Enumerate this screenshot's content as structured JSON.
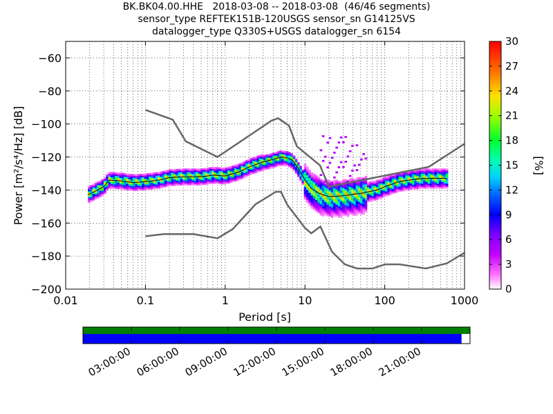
{
  "title_lines": [
    "BK.BK04.00.HHE   2018-03-08 -- 2018-03-08  (46/46 segments)",
    "sensor_type REFTEK151B-120USGS sensor_sn G14125VS",
    "datalogger_type Q330S+USGS datalogger_sn 6154"
  ],
  "chart_data": {
    "type": "heatmap",
    "title": "BK.BK04.00.HHE   2018-03-08 -- 2018-03-08  (46/46 segments)",
    "xlabel": "Period [s]",
    "ylabel": "Power [m²/s⁴/Hz] [dB]",
    "x_scale": "log",
    "xlim": [
      0.01,
      1000
    ],
    "ylim": [
      -200,
      -50
    ],
    "x_ticks": [
      0.01,
      0.1,
      1,
      10,
      100,
      1000
    ],
    "x_tick_labels": [
      "0.01",
      "0.1",
      "1",
      "10",
      "100",
      "1000"
    ],
    "y_ticks": [
      -200,
      -180,
      -160,
      -140,
      -120,
      -100,
      -80,
      -60
    ],
    "y_tick_labels": [
      "−200",
      "−180",
      "−160",
      "−140",
      "−120",
      "−100",
      "−80",
      "−60"
    ],
    "grid": true,
    "colorbar": {
      "label": "[%]",
      "range": [
        0,
        30
      ],
      "ticks": [
        0,
        3,
        6,
        9,
        12,
        15,
        18,
        21,
        24,
        27,
        30
      ]
    },
    "noise_models": [
      {
        "name": "NHNM",
        "color": "#666666",
        "points": [
          [
            0.1,
            -91.5
          ],
          [
            0.22,
            -97.4
          ],
          [
            0.32,
            -110.5
          ],
          [
            0.8,
            -120
          ],
          [
            3.8,
            -98
          ],
          [
            4.6,
            -96.5
          ],
          [
            6.3,
            -101
          ],
          [
            7.9,
            -113.5
          ],
          [
            15.4,
            -125
          ],
          [
            20,
            -138
          ],
          [
            354.8,
            -126
          ],
          [
            1000,
            -112
          ]
        ]
      },
      {
        "name": "NLNM",
        "color": "#666666",
        "points": [
          [
            0.1,
            -168
          ],
          [
            0.17,
            -166.7
          ],
          [
            0.4,
            -166.7
          ],
          [
            0.8,
            -169.2
          ],
          [
            1.24,
            -163.7
          ],
          [
            2.4,
            -148.6
          ],
          [
            4.3,
            -141.1
          ],
          [
            5,
            -141.1
          ],
          [
            6,
            -149
          ],
          [
            10,
            -163
          ],
          [
            12,
            -166.2
          ],
          [
            15.6,
            -162.1
          ],
          [
            21.9,
            -177.5
          ],
          [
            31.6,
            -185
          ],
          [
            45,
            -187.5
          ],
          [
            70,
            -187.5
          ],
          [
            101,
            -185
          ],
          [
            154,
            -185
          ],
          [
            328,
            -187.5
          ],
          [
            600,
            -184.4
          ],
          [
            1000,
            -178
          ]
        ]
      }
    ],
    "mode_curve": {
      "color": "#000000",
      "points": [
        [
          0.019,
          -143
        ],
        [
          0.025,
          -140
        ],
        [
          0.03,
          -138
        ],
        [
          0.035,
          -134
        ],
        [
          0.05,
          -134.5
        ],
        [
          0.07,
          -135.5
        ],
        [
          0.1,
          -135
        ],
        [
          0.15,
          -134
        ],
        [
          0.2,
          -132.5
        ],
        [
          0.3,
          -132
        ],
        [
          0.5,
          -132
        ],
        [
          0.7,
          -131
        ],
        [
          1,
          -131.5
        ],
        [
          1.5,
          -129
        ],
        [
          2,
          -126
        ],
        [
          3,
          -123
        ],
        [
          4,
          -121.5
        ],
        [
          5,
          -120
        ],
        [
          6,
          -120.5
        ],
        [
          7,
          -122
        ],
        [
          8,
          -126
        ],
        [
          10,
          -134
        ],
        [
          12,
          -139
        ],
        [
          15,
          -142
        ],
        [
          20,
          -144
        ],
        [
          30,
          -143.5
        ],
        [
          50,
          -142
        ],
        [
          80,
          -140
        ],
        [
          100,
          -138
        ],
        [
          150,
          -135
        ],
        [
          200,
          -134
        ],
        [
          300,
          -133
        ],
        [
          500,
          -133
        ],
        [
          600,
          -133
        ]
      ]
    },
    "time_coverage": {
      "segments": 46,
      "tick_labels": [
        "03:00:00",
        "06:00:00",
        "09:00:00",
        "12:00:00",
        "15:00:00",
        "18:00:00",
        "21:00:00"
      ],
      "data_bar_color": "#0000ff",
      "gap_bar_color": "#008000",
      "data_fraction": 0.978
    }
  }
}
